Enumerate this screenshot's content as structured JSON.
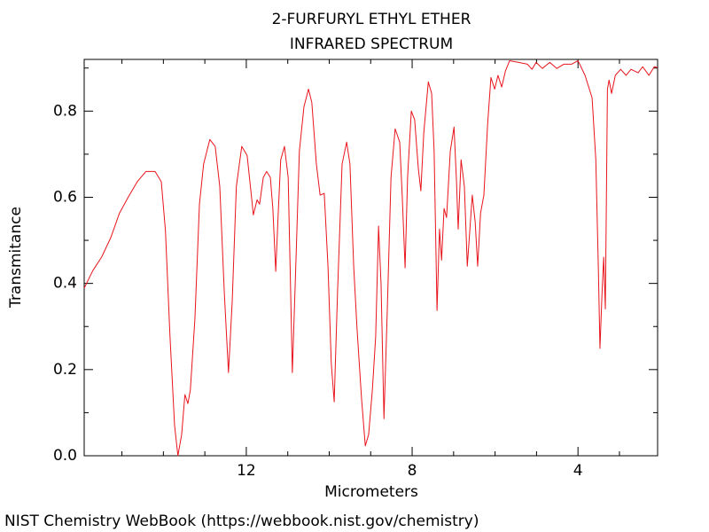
{
  "chart_data": {
    "type": "line",
    "title": "2-FURFURYL ETHYL ETHER",
    "subtitle": "INFRARED SPECTRUM",
    "x_label": "Micrometers",
    "y_label": "Transmitance",
    "color": "#e8141c",
    "xlim": [
      15.91,
      2.08
    ],
    "xticks": [
      12,
      8,
      4
    ],
    "xminorticks": [
      15,
      14,
      13,
      11,
      10,
      9,
      7,
      6,
      5,
      3
    ],
    "ylim": [
      0,
      0.92
    ],
    "yticks": [
      {
        "value": 0,
        "label": "0.0"
      },
      0.2,
      0.4,
      0.6,
      0.8
    ],
    "yminorticks": [
      0.1,
      0.3,
      0.5,
      0.7,
      0.9
    ],
    "x": [
      15.91,
      15.7,
      15.49,
      15.27,
      15.06,
      14.85,
      14.63,
      14.42,
      14.2,
      14.05,
      13.95,
      13.84,
      13.73,
      13.65,
      13.56,
      13.48,
      13.41,
      13.35,
      13.24,
      13.13,
      13.03,
      12.88,
      12.75,
      12.64,
      12.53,
      12.43,
      12.34,
      12.24,
      12.11,
      11.98,
      11.89,
      11.83,
      11.74,
      11.68,
      11.59,
      11.51,
      11.42,
      11.36,
      11.29,
      11.23,
      11.17,
      11.08,
      10.99,
      10.93,
      10.89,
      10.82,
      10.72,
      10.61,
      10.5,
      10.42,
      10.31,
      10.22,
      10.12,
      10.03,
      9.95,
      9.88,
      9.8,
      9.69,
      9.58,
      9.5,
      9.41,
      9.33,
      9.22,
      9.13,
      9.05,
      8.96,
      8.88,
      8.81,
      8.75,
      8.68,
      8.6,
      8.51,
      8.41,
      8.3,
      8.24,
      8.17,
      8.11,
      8.02,
      7.94,
      7.85,
      7.79,
      7.72,
      7.61,
      7.53,
      7.47,
      7.4,
      7.34,
      7.29,
      7.23,
      7.17,
      7.08,
      6.99,
      6.93,
      6.89,
      6.82,
      6.74,
      6.67,
      6.61,
      6.55,
      6.48,
      6.42,
      6.35,
      6.27,
      6.18,
      6.1,
      6.01,
      5.93,
      5.84,
      5.75,
      5.65,
      5.43,
      5.22,
      5.11,
      5.01,
      4.86,
      4.68,
      4.51,
      4.34,
      4.15,
      4.0,
      3.83,
      3.66,
      3.57,
      3.51,
      3.47,
      3.42,
      3.38,
      3.34,
      3.29,
      3.25,
      3.19,
      3.1,
      2.97,
      2.84,
      2.72,
      2.55,
      2.44,
      2.29,
      2.16,
      2.08
    ],
    "values": [
      0.389,
      0.43,
      0.461,
      0.506,
      0.563,
      0.6,
      0.636,
      0.66,
      0.66,
      0.636,
      0.522,
      0.276,
      0.07,
      0.0,
      0.049,
      0.142,
      0.121,
      0.152,
      0.317,
      0.584,
      0.677,
      0.734,
      0.718,
      0.625,
      0.378,
      0.193,
      0.358,
      0.625,
      0.718,
      0.697,
      0.615,
      0.559,
      0.594,
      0.584,
      0.646,
      0.66,
      0.646,
      0.574,
      0.428,
      0.563,
      0.687,
      0.718,
      0.646,
      0.378,
      0.193,
      0.399,
      0.707,
      0.81,
      0.851,
      0.82,
      0.677,
      0.605,
      0.609,
      0.44,
      0.214,
      0.125,
      0.378,
      0.677,
      0.728,
      0.677,
      0.44,
      0.296,
      0.132,
      0.023,
      0.049,
      0.152,
      0.276,
      0.533,
      0.399,
      0.086,
      0.337,
      0.646,
      0.759,
      0.728,
      0.605,
      0.436,
      0.646,
      0.8,
      0.78,
      0.666,
      0.615,
      0.749,
      0.868,
      0.841,
      0.707,
      0.337,
      0.526,
      0.454,
      0.574,
      0.553,
      0.707,
      0.763,
      0.636,
      0.526,
      0.687,
      0.625,
      0.44,
      0.522,
      0.605,
      0.543,
      0.44,
      0.563,
      0.605,
      0.769,
      0.878,
      0.851,
      0.883,
      0.856,
      0.893,
      0.917,
      0.913,
      0.909,
      0.897,
      0.913,
      0.899,
      0.913,
      0.899,
      0.909,
      0.909,
      0.917,
      0.883,
      0.831,
      0.687,
      0.44,
      0.249,
      0.378,
      0.461,
      0.341,
      0.851,
      0.872,
      0.841,
      0.883,
      0.897,
      0.883,
      0.897,
      0.889,
      0.903,
      0.883,
      0.903,
      0.901
    ]
  },
  "footer": "NIST Chemistry WebBook (https://webbook.nist.gov/chemistry)"
}
